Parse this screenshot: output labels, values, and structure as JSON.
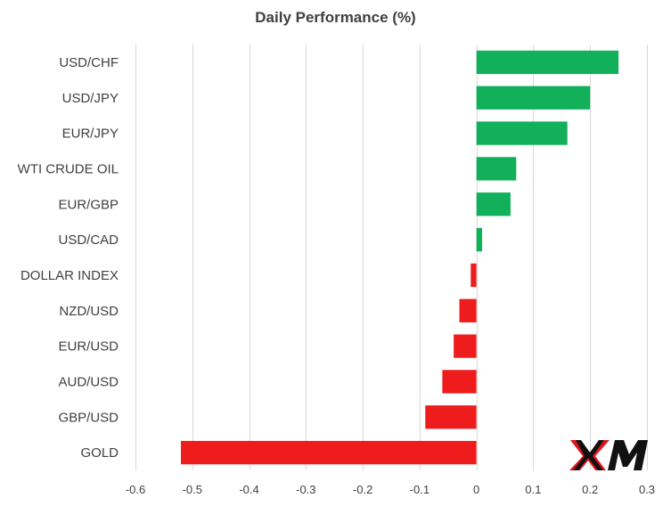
{
  "chart_data": {
    "type": "bar",
    "orientation": "horizontal",
    "title": "Daily Performance (%)",
    "categories": [
      "USD/CHF",
      "USD/JPY",
      "EUR/JPY",
      "WTI CRUDE OIL",
      "EUR/GBP",
      "USD/CAD",
      "DOLLAR INDEX",
      "NZD/USD",
      "EUR/USD",
      "AUD/USD",
      "GBP/USD",
      "GOLD"
    ],
    "values": [
      0.25,
      0.2,
      0.16,
      0.07,
      0.06,
      0.01,
      -0.01,
      -0.03,
      -0.04,
      -0.06,
      -0.09,
      -0.52
    ],
    "xlim": [
      -0.6,
      0.3
    ],
    "xticks": [
      -0.6,
      -0.5,
      -0.4,
      -0.3,
      -0.2,
      -0.1,
      0,
      0.1,
      0.2,
      0.3
    ],
    "xtick_labels": [
      "-0.6",
      "-0.5",
      "-0.4",
      "-0.3",
      "-0.2",
      "-0.1",
      "0",
      "0.1",
      "0.2",
      "0.3"
    ],
    "grid": "vertical",
    "colors": {
      "positive": "#12b05a",
      "negative": "#ee1c1c",
      "grid": "#d9d9d9",
      "text": "#404040"
    }
  },
  "logo": {
    "text": "XM"
  }
}
